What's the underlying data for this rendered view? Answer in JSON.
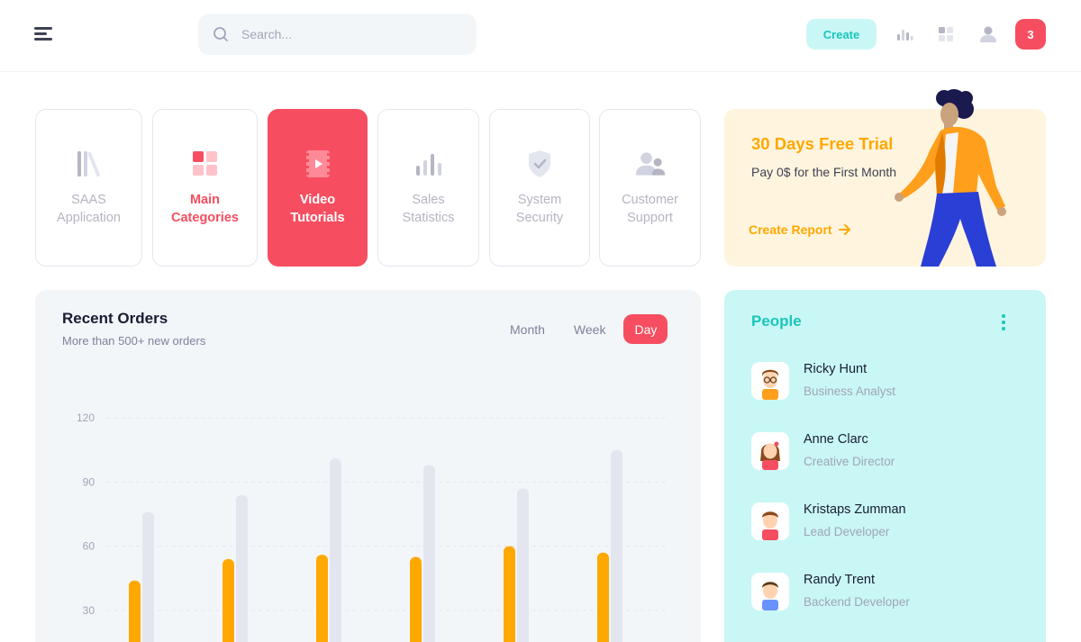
{
  "header": {
    "menu_icon": "hamburger-icon",
    "search_placeholder": "Search...",
    "create_label": "Create",
    "icons": [
      "bar-chart-icon",
      "apps-grid-icon",
      "user-icon"
    ],
    "notification_count": "3"
  },
  "categories": [
    {
      "label": "SAAS\nApplication",
      "icon": "library-icon",
      "state": "default"
    },
    {
      "label": "Main\nCategories",
      "icon": "categories-grid-icon",
      "state": "highlight"
    },
    {
      "label": "Video\nTutorials",
      "icon": "film-play-icon",
      "state": "active"
    },
    {
      "label": "Sales\nStatistics",
      "icon": "bar-chart-icon",
      "state": "default"
    },
    {
      "label": "System\nSecurity",
      "icon": "shield-check-icon",
      "state": "default"
    },
    {
      "label": "Customer\nSupport",
      "icon": "users-icon",
      "state": "default"
    }
  ],
  "promo": {
    "title": "30 Days Free Trial",
    "subtitle": "Pay 0$ for the First Month",
    "link_label": "Create Report",
    "link_icon": "arrow-right-icon"
  },
  "orders": {
    "title": "Recent Orders",
    "subtitle": "More than 500+ new orders",
    "tabs": [
      {
        "label": "Month",
        "active": false
      },
      {
        "label": "Week",
        "active": false
      },
      {
        "label": "Day",
        "active": true
      }
    ]
  },
  "chart_data": {
    "type": "bar",
    "categories": [
      "",
      "",
      "",
      "",
      "",
      ""
    ],
    "y_ticks": [
      30,
      60,
      90,
      120
    ],
    "ylim": [
      0,
      125
    ],
    "series": [
      {
        "color": "#FFA800",
        "values": [
          44,
          54,
          56,
          55,
          60,
          57
        ]
      },
      {
        "color": "#E4E6EF",
        "values": [
          76,
          84,
          101,
          98,
          87,
          105
        ]
      }
    ],
    "grid": true
  },
  "people": {
    "title": "People",
    "menu_icon": "vertical-dots-icon",
    "items": [
      {
        "name": "Ricky Hunt",
        "role": "Business Analyst",
        "avatar": "avatar-glasses-man-icon"
      },
      {
        "name": "Anne Clarc",
        "role": "Creative Director",
        "avatar": "avatar-woman-icon"
      },
      {
        "name": "Kristaps Zumman",
        "role": "Lead Developer",
        "avatar": "avatar-man-red-icon"
      },
      {
        "name": "Randy Trent",
        "role": "Backend Developer",
        "avatar": "avatar-man-blue-icon"
      }
    ]
  }
}
